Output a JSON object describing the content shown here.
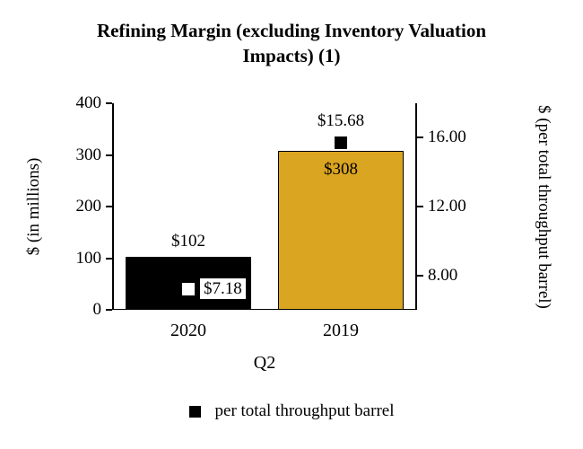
{
  "chart_data": {
    "type": "bar",
    "title": "Refining Margin (excluding Inventory Valuation Impacts) (1)",
    "categories": [
      "2020",
      "2019"
    ],
    "xlabel": "Q2",
    "left_axis": {
      "label": "$ (in millions)",
      "range": [
        0,
        400
      ],
      "ticks": [
        400,
        300,
        200,
        100,
        0
      ]
    },
    "right_axis": {
      "label": "$ (per total throughput barrel)",
      "range": [
        6,
        18
      ],
      "ticks": [
        "16.00",
        "12.00",
        "8.00"
      ]
    },
    "series": [
      {
        "type": "bar",
        "axis": "left",
        "values": [
          102,
          308
        ],
        "labels": [
          "$102",
          "$308"
        ],
        "label_positions": [
          "above",
          "inside"
        ],
        "colors": [
          "#000000",
          "#DAA520"
        ]
      },
      {
        "name": "per total throughput barrel",
        "type": "scatter",
        "axis": "right",
        "values": [
          7.18,
          15.68
        ],
        "labels": [
          "$7.18",
          "$15.68"
        ],
        "label_positions": [
          "right",
          "above"
        ],
        "marker_colors": [
          "#FFFFFF",
          "#000000"
        ]
      }
    ],
    "legend": {
      "label": "per total throughput barrel",
      "marker_color": "#000000",
      "position": "bottom"
    }
  }
}
